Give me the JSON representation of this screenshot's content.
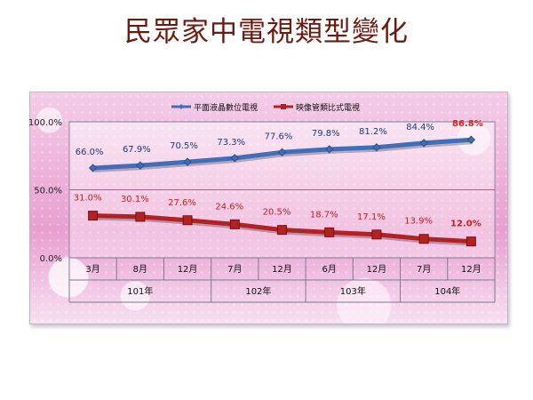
{
  "page": {
    "title": "民眾家中電視類型變化"
  },
  "chart_data": {
    "type": "line",
    "title": "",
    "legend_position": "top-center",
    "grid": true,
    "y_tick_labels": [
      "100.0%",
      "50.0%",
      "0.0%"
    ],
    "y_ticks": [
      100,
      50,
      0
    ],
    "ylim": [
      0,
      100
    ],
    "categories": [
      "3月",
      "8月",
      "12月",
      "7月",
      "12月",
      "6月",
      "12月",
      "7月",
      "12月"
    ],
    "year_groups": [
      {
        "label": "101年",
        "span": 3
      },
      {
        "label": "102年",
        "span": 2
      },
      {
        "label": "103年",
        "span": 2
      },
      {
        "label": "104年",
        "span": 2
      }
    ],
    "series": [
      {
        "name": "平面液晶數位電視",
        "color": "#3f6fb8",
        "values": [
          66.0,
          67.9,
          70.5,
          73.3,
          77.6,
          79.8,
          81.2,
          84.4,
          86.8
        ],
        "labels": [
          "66.0%",
          "67.9%",
          "70.5%",
          "73.3%",
          "77.6%",
          "79.8%",
          "81.2%",
          "84.4%",
          "86.8%"
        ],
        "label_color": "#1f3a78",
        "last_label_color": "#e02020"
      },
      {
        "name": "映像管類比式電視",
        "color": "#b22222",
        "values": [
          31.0,
          30.1,
          27.6,
          24.6,
          20.5,
          18.7,
          17.1,
          13.9,
          12.0
        ],
        "labels": [
          "31.0%",
          "30.1%",
          "27.6%",
          "24.6%",
          "20.5%",
          "18.7%",
          "17.1%",
          "13.9%",
          "12.0%"
        ],
        "label_color": "#c42020",
        "last_label_color": "#c42020"
      }
    ]
  }
}
